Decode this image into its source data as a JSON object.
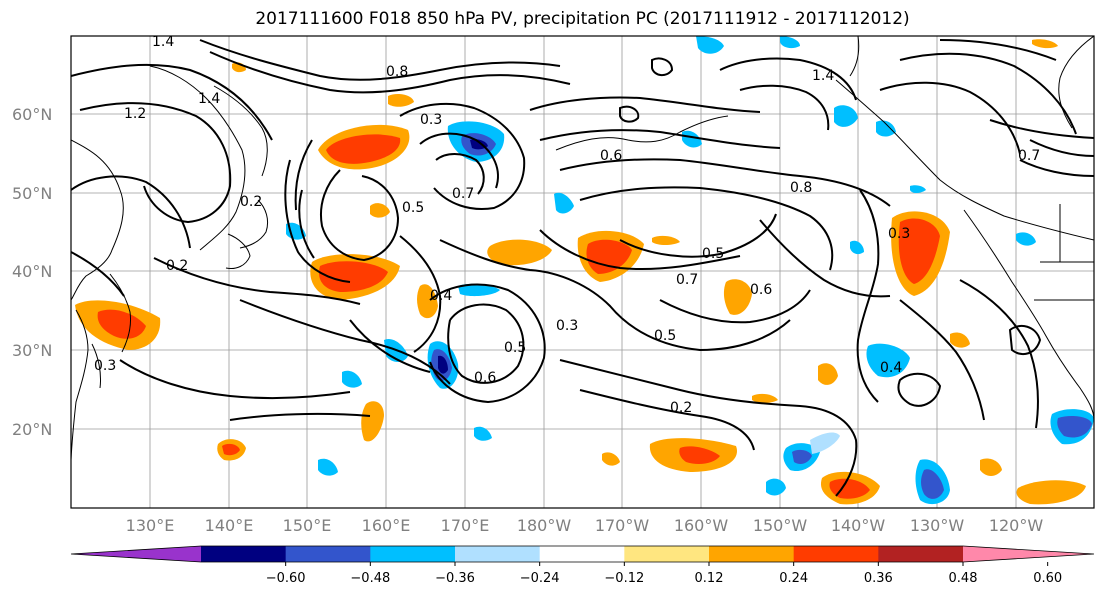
{
  "map": {
    "title": "2017111600 F018 850 hPa PV, precipitation PC (2017111912 - 2017112012)",
    "lat_labels": [
      "60°N",
      "50°N",
      "40°N",
      "30°N",
      "20°N"
    ],
    "lon_labels": [
      "130°E",
      "140°E",
      "150°E",
      "160°E",
      "170°E",
      "180°W",
      "170°W",
      "160°W",
      "150°W",
      "140°W",
      "130°W",
      "120°W"
    ],
    "contour_labels": [
      "1.4",
      "1.4",
      "1.2",
      "0.8",
      "0.3",
      "0.7",
      "0.5",
      "0.4",
      "0.2",
      "0.3",
      "0.5",
      "0.6",
      "0.3",
      "0.7",
      "0.5",
      "0.6",
      "0.5",
      "0.8",
      "0.3",
      "0.4",
      "0.2",
      "0.6",
      "1.4",
      "0.7",
      "0.2"
    ]
  },
  "colorbar": {
    "colors": [
      "#9933cc",
      "#000080",
      "#3355cc",
      "#00bfff",
      "#b0e0ff",
      "#ffffff",
      "#ffe680",
      "#ffa500",
      "#ff3c00",
      "#b22222",
      "#ff88aa"
    ],
    "tick_labels": [
      "−0.60",
      "−0.48",
      "−0.36",
      "−0.24",
      "−0.12",
      "0.12",
      "0.24",
      "0.36",
      "0.48",
      "0.60"
    ]
  }
}
